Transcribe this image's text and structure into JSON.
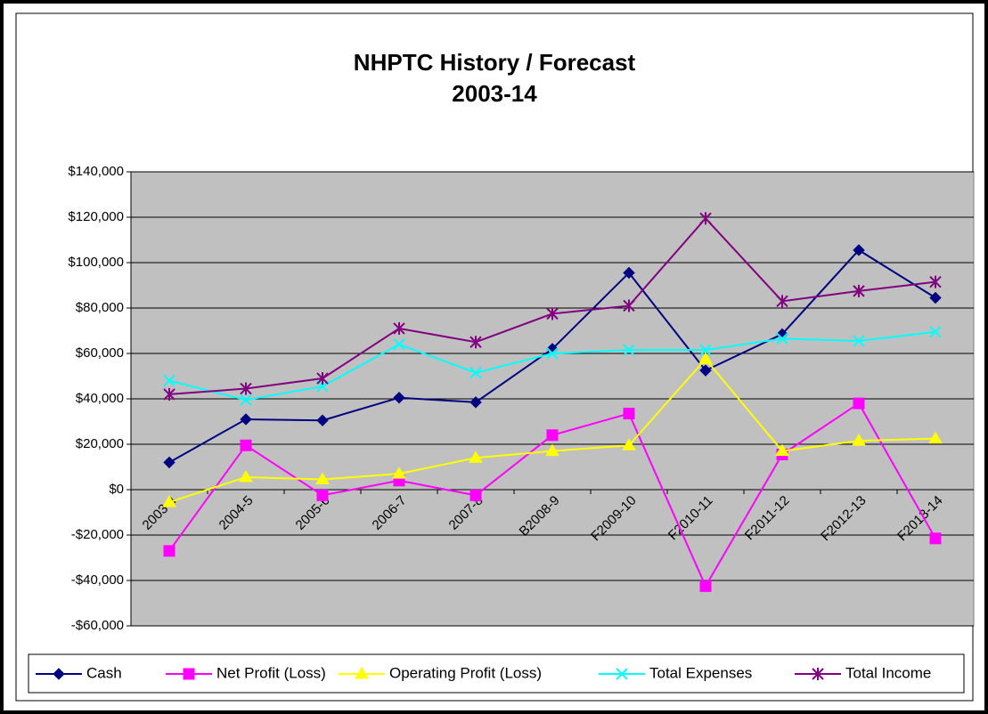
{
  "chart_data": {
    "type": "line",
    "title": "NHPTC History / Forecast",
    "subtitle": "2003-14",
    "categories": [
      "2003-4",
      "2004-5",
      "2005-6",
      "2006-7",
      "2007-8",
      "B2008-9",
      "F2009-10",
      "F2010-11",
      "F2011-12",
      "F2012-13",
      "F2013-14"
    ],
    "series": [
      {
        "name": "Cash",
        "color": "#000080",
        "marker": "diamond",
        "values": [
          12000,
          31000,
          30500,
          40500,
          38500,
          62000,
          95500,
          52500,
          68500,
          105500,
          84500
        ]
      },
      {
        "name": "Net Profit (Loss)",
        "color": "#ff00ff",
        "marker": "square",
        "values": [
          -27000,
          19500,
          -2500,
          4000,
          -2500,
          24000,
          33500,
          -42500,
          15500,
          38000,
          -21500
        ]
      },
      {
        "name": "Operating Profit (Loss)",
        "color": "#ffff00",
        "marker": "triangle",
        "values": [
          -5500,
          5500,
          4500,
          7000,
          14000,
          17000,
          19500,
          57500,
          17000,
          21500,
          22500
        ]
      },
      {
        "name": "Total Expenses",
        "color": "#00ffff",
        "marker": "x",
        "values": [
          48000,
          39500,
          45500,
          64000,
          51500,
          60000,
          61500,
          61500,
          66500,
          65500,
          69500
        ]
      },
      {
        "name": "Total Income",
        "color": "#800080",
        "marker": "star",
        "values": [
          42000,
          44500,
          49000,
          71000,
          65000,
          77500,
          81000,
          119500,
          83000,
          87500,
          91500
        ]
      }
    ],
    "ylim": [
      -60000,
      140000
    ],
    "yticks": [
      {
        "value": -60000,
        "label": "-$60,000"
      },
      {
        "value": -40000,
        "label": "-$40,000"
      },
      {
        "value": -20000,
        "label": "-$20,000"
      },
      {
        "value": 0,
        "label": "$0"
      },
      {
        "value": 20000,
        "label": "$20,000"
      },
      {
        "value": 40000,
        "label": "$40,000"
      },
      {
        "value": 60000,
        "label": "$60,000"
      },
      {
        "value": 80000,
        "label": "$80,000"
      },
      {
        "value": 100000,
        "label": "$100,000"
      },
      {
        "value": 120000,
        "label": "$120,000"
      },
      {
        "value": 140000,
        "label": "$140,000"
      }
    ],
    "grid": true,
    "legend": "bottom"
  }
}
